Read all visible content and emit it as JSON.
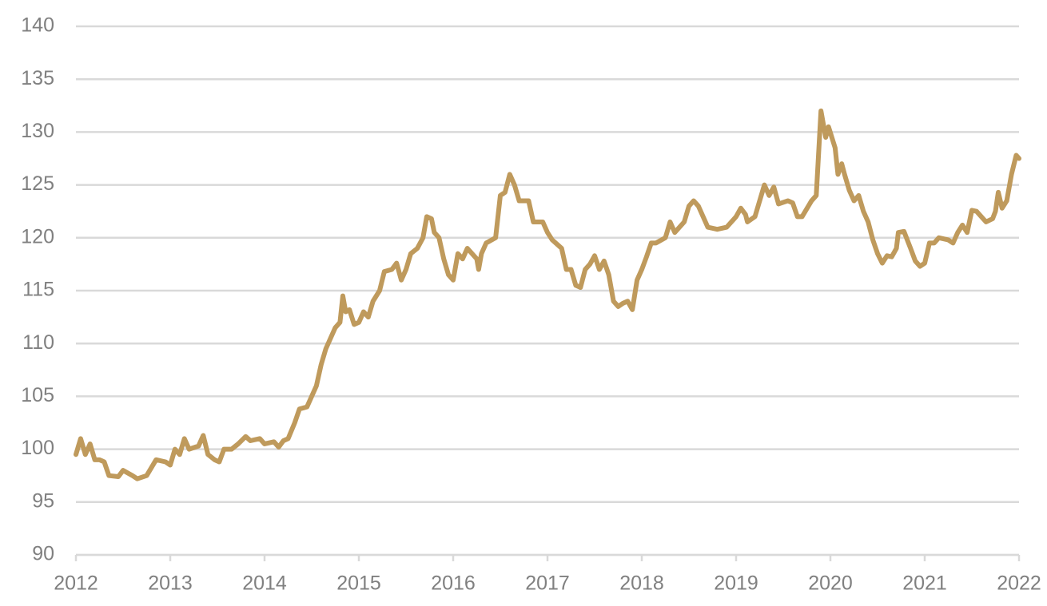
{
  "chart_data": {
    "type": "line",
    "x": [
      2012.0,
      2012.05,
      2012.1,
      2012.15,
      2012.2,
      2012.25,
      2012.3,
      2012.35,
      2012.45,
      2012.5,
      2012.6,
      2012.65,
      2012.75,
      2012.85,
      2012.95,
      2013.0,
      2013.05,
      2013.1,
      2013.15,
      2013.2,
      2013.3,
      2013.35,
      2013.4,
      2013.47,
      2013.52,
      2013.57,
      2013.65,
      2013.72,
      2013.8,
      2013.85,
      2013.95,
      2014.0,
      2014.1,
      2014.15,
      2014.2,
      2014.25,
      2014.32,
      2014.37,
      2014.45,
      2014.5,
      2014.55,
      2014.6,
      2014.65,
      2014.7,
      2014.75,
      2014.8,
      2014.83,
      2014.86,
      2014.9,
      2014.95,
      2015.0,
      2015.05,
      2015.1,
      2015.15,
      2015.22,
      2015.27,
      2015.35,
      2015.4,
      2015.45,
      2015.5,
      2015.55,
      2015.62,
      2015.68,
      2015.72,
      2015.77,
      2015.8,
      2015.85,
      2015.9,
      2015.95,
      2016.0,
      2016.05,
      2016.1,
      2016.15,
      2016.2,
      2016.25,
      2016.27,
      2016.3,
      2016.35,
      2016.45,
      2016.5,
      2016.55,
      2016.6,
      2016.65,
      2016.7,
      2016.8,
      2016.85,
      2016.95,
      2017.0,
      2017.05,
      2017.15,
      2017.2,
      2017.25,
      2017.3,
      2017.35,
      2017.4,
      2017.45,
      2017.5,
      2017.55,
      2017.6,
      2017.65,
      2017.7,
      2017.75,
      2017.8,
      2017.85,
      2017.9,
      2017.95,
      2018.0,
      2018.05,
      2018.1,
      2018.15,
      2018.25,
      2018.3,
      2018.35,
      2018.45,
      2018.5,
      2018.55,
      2018.6,
      2018.65,
      2018.7,
      2018.8,
      2018.9,
      2019.0,
      2019.05,
      2019.1,
      2019.12,
      2019.2,
      2019.25,
      2019.3,
      2019.35,
      2019.4,
      2019.45,
      2019.55,
      2019.6,
      2019.65,
      2019.7,
      2019.8,
      2019.85,
      2019.9,
      2019.95,
      2019.98,
      2020.05,
      2020.08,
      2020.12,
      2020.15,
      2020.2,
      2020.25,
      2020.3,
      2020.35,
      2020.4,
      2020.45,
      2020.5,
      2020.55,
      2020.6,
      2020.65,
      2020.7,
      2020.72,
      2020.78,
      2020.85,
      2020.9,
      2020.95,
      2021.0,
      2021.05,
      2021.1,
      2021.15,
      2021.25,
      2021.3,
      2021.35,
      2021.4,
      2021.45,
      2021.5,
      2021.55,
      2021.6,
      2021.65,
      2021.72,
      2021.75,
      2021.78,
      2021.82,
      2021.87,
      2021.92,
      2021.97,
      2022.0
    ],
    "series": [
      {
        "color": "#bf9a5c",
        "values": [
          99.5,
          101,
          99.5,
          100.5,
          99,
          99,
          98.8,
          97.5,
          97.4,
          98,
          97.5,
          97.2,
          97.5,
          99,
          98.8,
          98.5,
          100,
          99.5,
          101,
          100,
          100.3,
          101.3,
          99.5,
          99,
          98.8,
          100,
          100,
          100.5,
          101.2,
          100.8,
          101,
          100.5,
          100.7,
          100.2,
          100.8,
          101,
          102.5,
          103.8,
          104,
          105,
          106,
          108,
          109.5,
          110.5,
          111.5,
          112,
          114.5,
          113,
          113.2,
          111.8,
          112,
          113,
          112.5,
          114,
          115,
          116.8,
          117,
          117.6,
          116,
          117,
          118.5,
          119,
          120,
          122,
          121.8,
          120.5,
          120,
          118,
          116.5,
          116,
          118.5,
          118,
          119,
          118.5,
          118,
          117,
          118.5,
          119.5,
          120,
          124,
          124.3,
          126,
          125,
          123.5,
          123.5,
          121.5,
          121.5,
          120.5,
          119.8,
          119,
          117,
          117,
          115.5,
          115.3,
          117,
          117.5,
          118.3,
          117,
          117.8,
          116.5,
          114,
          113.5,
          113.8,
          114,
          113.2,
          116,
          117,
          118.2,
          119.5,
          119.5,
          120,
          121.5,
          120.5,
          121.5,
          123,
          123.5,
          123,
          122,
          121,
          120.8,
          121,
          122,
          122.8,
          122.2,
          121.5,
          122,
          123.5,
          125,
          124,
          124.8,
          123.2,
          123.5,
          123.3,
          122,
          122,
          123.5,
          124,
          132,
          129.5,
          130.5,
          128.5,
          126,
          127,
          126,
          124.5,
          123.5,
          124,
          122.5,
          121.5,
          119.8,
          118.5,
          117.6,
          118.3,
          118.2,
          119,
          120.5,
          120.6,
          119,
          117.8,
          117.3,
          117.6,
          119.5,
          119.5,
          120,
          119.8,
          119.5,
          120.5,
          121.2,
          120.5,
          122.6,
          122.5,
          122,
          121.5,
          121.8,
          122.5,
          124.3,
          122.8,
          123.5,
          126,
          127.8,
          127.5
        ]
      }
    ],
    "xlim": [
      2012,
      2022
    ],
    "xticks": [
      2012,
      2013,
      2014,
      2015,
      2016,
      2017,
      2018,
      2019,
      2020,
      2021,
      2022
    ],
    "ylim": [
      90,
      140
    ],
    "yticks": [
      90,
      95,
      100,
      105,
      110,
      115,
      120,
      125,
      130,
      135,
      140
    ],
    "grid": true
  }
}
